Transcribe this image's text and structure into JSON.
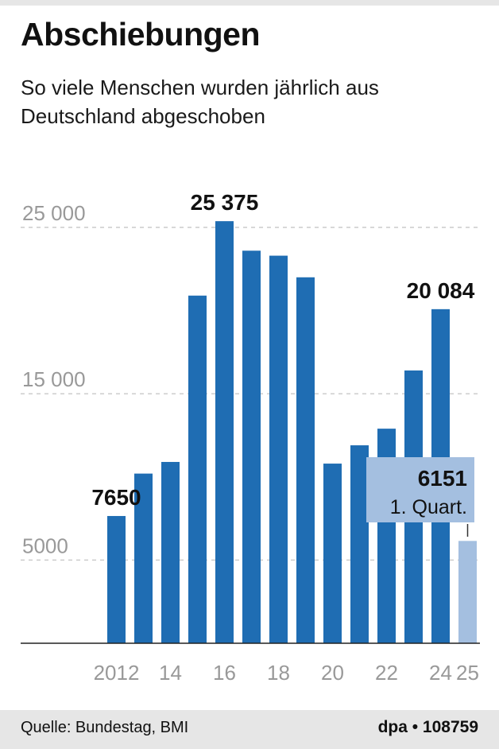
{
  "header": {
    "title": "Abschiebungen",
    "subtitle": "So viele Menschen wurden jährlich aus Deutschland abgeschoben"
  },
  "chart_data": {
    "type": "bar",
    "categories": [
      "2012",
      "13",
      "14",
      "15",
      "16",
      "17",
      "18",
      "19",
      "20",
      "21",
      "22",
      "23",
      "24",
      "25"
    ],
    "x_tick_labels": [
      "2012",
      "",
      "14",
      "",
      "16",
      "",
      "18",
      "",
      "20",
      "",
      "22",
      "",
      "24",
      "25"
    ],
    "values": [
      7650,
      10200,
      10900,
      20900,
      25375,
      23600,
      23300,
      22000,
      10800,
      11900,
      12900,
      16400,
      20084,
      6151
    ],
    "data_labels": [
      {
        "index": 0,
        "text": "7650"
      },
      {
        "index": 4,
        "text": "25 375"
      },
      {
        "index": 12,
        "text": "20 084"
      }
    ],
    "highlight": {
      "index": 13,
      "value_text": "6151",
      "note": "1. Quart."
    },
    "y_tick_labels": [
      {
        "value": 5000,
        "text": "5000"
      },
      {
        "value": 15000,
        "text": "15 000"
      },
      {
        "value": 25000,
        "text": "25 000"
      }
    ],
    "ylim": [
      0,
      26000
    ],
    "grid": true,
    "colors": {
      "bar": "#1f6db3",
      "highlight_bar": "#a4bfe0",
      "highlight_box": "#a4bfe0",
      "grid": "#cccccc",
      "tick_text": "#999999"
    }
  },
  "footer": {
    "source": "Quelle: Bundestag, BMI",
    "credit": "dpa • 108759"
  }
}
